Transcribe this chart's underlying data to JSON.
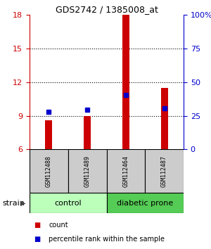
{
  "title": "GDS2742 / 1385008_at",
  "samples": [
    "GSM112488",
    "GSM112489",
    "GSM112464",
    "GSM112487"
  ],
  "bar_baseline": 6,
  "count_values": [
    8.6,
    9.0,
    18.0,
    11.5
  ],
  "percentile_values": [
    9.35,
    9.55,
    10.85,
    9.65
  ],
  "left_ylim": [
    6,
    18
  ],
  "left_yticks": [
    6,
    9,
    12,
    15,
    18
  ],
  "right_ylim": [
    0,
    100
  ],
  "right_yticks": [
    0,
    25,
    50,
    75,
    100
  ],
  "right_yticklabels": [
    "0",
    "25",
    "50",
    "75",
    "100%"
  ],
  "dotted_lines": [
    9,
    12,
    15
  ],
  "bar_color": "#cc0000",
  "percentile_color": "#0000cc",
  "left_axis_color": "#cc0000",
  "right_axis_color": "#0000cc",
  "sample_box_color": "#cccccc",
  "group_box_colors": [
    "#bbffbb",
    "#55cc55"
  ],
  "strain_label": "strain",
  "legend_count_label": "count",
  "legend_percentile_label": "percentile rank within the sample",
  "bar_width": 0.18,
  "title_fontsize": 9,
  "tick_fontsize": 8,
  "sample_fontsize": 6,
  "group_fontsize": 8,
  "legend_fontsize": 7
}
